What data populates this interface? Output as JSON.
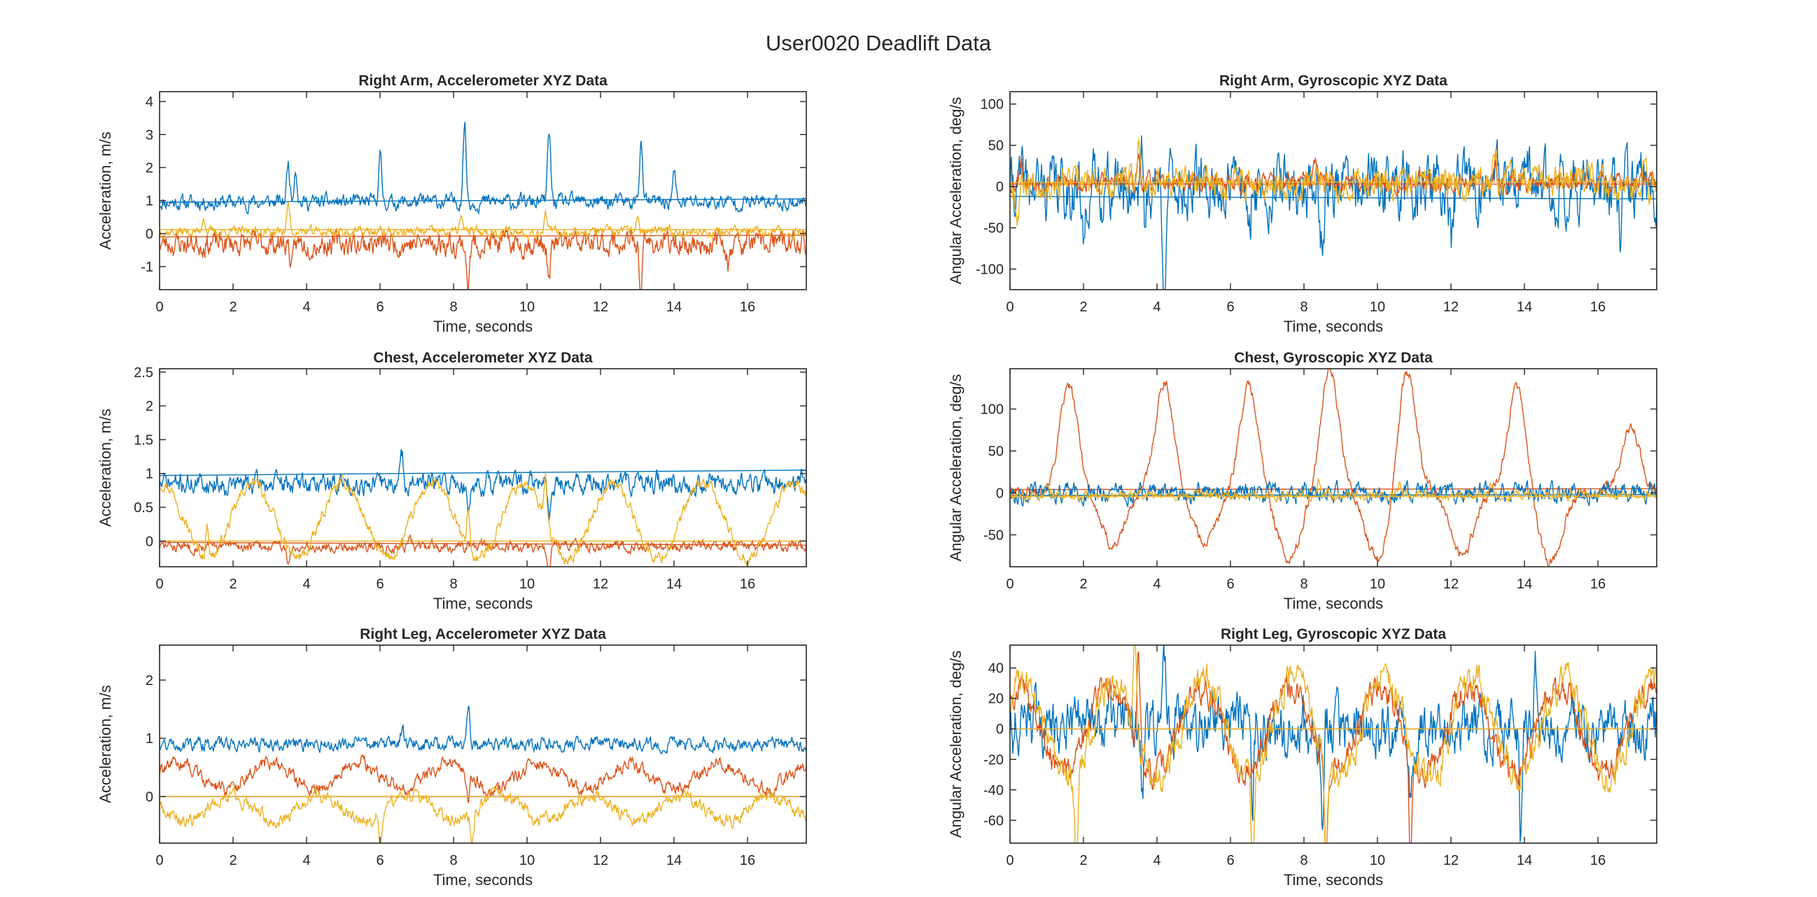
{
  "figure": {
    "title": "User0020 Deadlift Data"
  },
  "colors": {
    "x": "#0072BD",
    "y": "#D95319",
    "z": "#EDB120",
    "axis": "#262626"
  },
  "chart_data": [
    {
      "type": "line",
      "title": "Right Arm, Accelerometer XYZ Data",
      "xlabel": "Time, seconds",
      "ylabel": "Acceleration, m/s",
      "xlim": [
        0,
        17.6
      ],
      "ylim": [
        -1.7,
        4.3
      ],
      "xticks": [
        0,
        2,
        4,
        6,
        8,
        10,
        12,
        14,
        16
      ],
      "yticks": [
        -1,
        0,
        1,
        2,
        3,
        4
      ],
      "series": [
        {
          "color": "x",
          "base": 0.95,
          "trend": [
            0.95,
            1.05
          ],
          "noise": 0.18,
          "seed": 11,
          "spikes": [
            [
              3.5,
              1.2
            ],
            [
              3.7,
              1.1
            ],
            [
              6.0,
              1.4
            ],
            [
              8.3,
              2.4
            ],
            [
              10.6,
              2.1
            ],
            [
              13.1,
              1.8
            ],
            [
              14.0,
              0.9
            ]
          ]
        },
        {
          "color": "y",
          "base": -0.3,
          "trend": [
            -0.1,
            -0.05
          ],
          "noise": 0.28,
          "seed": 23,
          "spikes": [
            [
              3.6,
              -0.8
            ],
            [
              8.4,
              -1.3
            ],
            [
              10.6,
              -1.2
            ],
            [
              13.1,
              -1.3
            ],
            [
              15.5,
              -0.6
            ]
          ]
        },
        {
          "color": "z",
          "base": 0.05,
          "trend": [
            0.12,
            0.12
          ],
          "noise": 0.12,
          "seed": 37,
          "spikes": [
            [
              1.2,
              0.5
            ],
            [
              3.5,
              0.8
            ],
            [
              8.2,
              0.4
            ],
            [
              10.5,
              0.6
            ],
            [
              13.0,
              0.5
            ]
          ]
        }
      ]
    },
    {
      "type": "line",
      "title": "Right Arm, Gyroscopic XYZ Data",
      "xlabel": "Time, seconds",
      "ylabel": "Angular Acceleration, deg/s",
      "xlim": [
        0,
        17.6
      ],
      "ylim": [
        -125,
        115
      ],
      "xticks": [
        0,
        2,
        4,
        6,
        8,
        10,
        12,
        14,
        16
      ],
      "yticks": [
        -100,
        -50,
        0,
        50,
        100
      ],
      "series": [
        {
          "color": "x",
          "base": 0,
          "trend": [
            -12,
            -15
          ],
          "noise": 30,
          "seed": 41,
          "spikes": [
            [
              3.6,
              110
            ],
            [
              3.65,
              -105
            ],
            [
              4.2,
              -120
            ],
            [
              2.0,
              -90
            ],
            [
              6.5,
              -85
            ],
            [
              8.5,
              -75
            ],
            [
              12.0,
              -80
            ],
            [
              16.6,
              -70
            ]
          ]
        },
        {
          "color": "y",
          "base": 5,
          "trend": [
            3,
            3
          ],
          "noise": 9,
          "seed": 53,
          "spikes": [
            [
              0.3,
              35
            ],
            [
              3.5,
              30
            ],
            [
              8.3,
              25
            ],
            [
              13.2,
              30
            ]
          ]
        },
        {
          "color": "z",
          "base": 5,
          "trend": [
            5,
            6
          ],
          "noise": 14,
          "seed": 67,
          "spikes": [
            [
              0.2,
              -40
            ],
            [
              3.5,
              45
            ],
            [
              17.3,
              45
            ],
            [
              13.2,
              40
            ]
          ]
        }
      ]
    },
    {
      "type": "line",
      "title": "Chest, Accelerometer XYZ Data",
      "xlabel": "Time, seconds",
      "ylabel": "Acceleration, m/s",
      "xlim": [
        0,
        17.6
      ],
      "ylim": [
        -0.38,
        2.55
      ],
      "xticks": [
        0,
        2,
        4,
        6,
        8,
        10,
        12,
        14,
        16
      ],
      "yticks": [
        0,
        0.5,
        1,
        1.5,
        2,
        2.5
      ],
      "series": [
        {
          "color": "x",
          "base": 0.85,
          "trend": [
            0.97,
            1.05
          ],
          "noise": 0.12,
          "seed": 71,
          "spikes": [
            [
              6.6,
              0.4
            ],
            [
              8.4,
              -0.5
            ],
            [
              10.6,
              -0.5
            ],
            [
              17.5,
              0.2
            ]
          ]
        },
        {
          "color": "y",
          "base": -0.08,
          "trend": [
            -0.02,
            -0.06
          ],
          "noise": 0.06,
          "seed": 83,
          "spikes": [
            [
              3.5,
              -0.3
            ],
            [
              10.6,
              -0.35
            ],
            [
              6.8,
              0.15
            ]
          ]
        },
        {
          "color": "z",
          "base": 0.3,
          "trend": [
            0.0,
            0.0
          ],
          "noise": 0.07,
          "seed": 97,
          "wave": {
            "amp": 0.55,
            "period": 2.45,
            "phase": 1.35
          },
          "spikes": [
            [
              1.3,
              0.5
            ],
            [
              8.4,
              0.6
            ],
            [
              10.5,
              0.7
            ]
          ]
        }
      ]
    },
    {
      "type": "line",
      "title": "Chest, Gyroscopic XYZ Data",
      "xlabel": "Time, seconds",
      "ylabel": "Angular Acceleration, deg/s",
      "xlim": [
        0,
        17.6
      ],
      "ylim": [
        -88,
        148
      ],
      "xticks": [
        0,
        2,
        4,
        6,
        8,
        10,
        12,
        14,
        16
      ],
      "yticks": [
        -50,
        0,
        50,
        100
      ],
      "series": [
        {
          "color": "y",
          "base": 2,
          "trend": [
            4,
            5
          ],
          "noise": 5,
          "seed": 101,
          "peaks": [
            [
              1.6,
              125
            ],
            [
              4.2,
              130
            ],
            [
              6.5,
              125
            ],
            [
              8.7,
              145
            ],
            [
              10.8,
              145
            ],
            [
              13.8,
              125
            ],
            [
              16.9,
              75
            ]
          ],
          "troughs": [
            [
              2.8,
              -65
            ],
            [
              5.3,
              -60
            ],
            [
              7.6,
              -82
            ],
            [
              10.0,
              -80
            ],
            [
              12.3,
              -75
            ],
            [
              14.7,
              -85
            ]
          ]
        },
        {
          "color": "x",
          "base": 0,
          "trend": [
            -3,
            -2
          ],
          "noise": 9,
          "seed": 113,
          "spikes": []
        },
        {
          "color": "z",
          "base": -3,
          "trend": [
            -4,
            -4
          ],
          "noise": 4,
          "seed": 127,
          "spikes": [
            [
              1.0,
              15
            ],
            [
              8.4,
              18
            ],
            [
              10.6,
              15
            ],
            [
              13.1,
              12
            ]
          ]
        }
      ]
    },
    {
      "type": "line",
      "title": "Right Leg, Accelerometer XYZ Data",
      "xlabel": "Time, seconds",
      "ylabel": "Acceleration, m/s",
      "xlim": [
        0,
        17.6
      ],
      "ylim": [
        -0.8,
        2.6
      ],
      "xticks": [
        0,
        2,
        4,
        6,
        8,
        10,
        12,
        14,
        16
      ],
      "yticks": [
        0,
        1,
        2
      ],
      "series": [
        {
          "color": "x",
          "base": 0.9,
          "trend": [
            0.0,
            0.0
          ],
          "noise": 0.09,
          "seed": 131,
          "spikes": [
            [
              8.4,
              0.7
            ],
            [
              6.6,
              0.25
            ]
          ]
        },
        {
          "color": "y",
          "base": 0.35,
          "trend": [
            0.0,
            0.0
          ],
          "noise": 0.09,
          "seed": 139,
          "wave": {
            "amp": 0.22,
            "period": 2.45,
            "phase": 0.2
          },
          "spikes": [
            [
              8.4,
              -0.5
            ]
          ]
        },
        {
          "color": "z",
          "base": -0.2,
          "trend": [
            0.0,
            0.0
          ],
          "noise": 0.09,
          "seed": 149,
          "wave": {
            "amp": 0.22,
            "period": 2.45,
            "phase": 2.9
          },
          "spikes": [
            [
              8.5,
              -0.55
            ],
            [
              6.0,
              -0.5
            ]
          ]
        }
      ]
    },
    {
      "type": "line",
      "title": "Right Leg, Gyroscopic XYZ Data",
      "xlabel": "Time, seconds",
      "ylabel": "Angular Acceleration, deg/s",
      "xlim": [
        0,
        17.6
      ],
      "ylim": [
        -75,
        55
      ],
      "xticks": [
        0,
        2,
        4,
        6,
        8,
        10,
        12,
        14,
        16
      ],
      "yticks": [
        -60,
        -40,
        -20,
        0,
        20,
        40
      ],
      "series": [
        {
          "color": "x",
          "base": 2,
          "trend": [
            0,
            0
          ],
          "noise": 14,
          "seed": 151,
          "spikes": [
            [
              3.6,
              -45
            ],
            [
              4.2,
              50
            ],
            [
              6.6,
              -55
            ],
            [
              8.5,
              -65
            ],
            [
              10.9,
              -60
            ],
            [
              13.9,
              -65
            ],
            [
              14.3,
              45
            ]
          ]
        },
        {
          "color": "y",
          "base": 0,
          "trend": [
            0,
            0
          ],
          "noise": 7,
          "seed": 157,
          "wave": {
            "amp": 28,
            "period": 2.45,
            "phase": 0.9
          },
          "spikes": [
            [
              3.5,
              55
            ],
            [
              8.6,
              -70
            ],
            [
              10.9,
              -70
            ]
          ]
        },
        {
          "color": "z",
          "base": 0,
          "trend": [
            0,
            0
          ],
          "noise": 8,
          "seed": 163,
          "wave": {
            "amp": 33,
            "period": 2.45,
            "phase": 0.6
          },
          "spikes": [
            [
              3.4,
              50
            ],
            [
              6.6,
              -70
            ],
            [
              8.6,
              -70
            ],
            [
              1.8,
              -55
            ]
          ]
        }
      ]
    }
  ]
}
